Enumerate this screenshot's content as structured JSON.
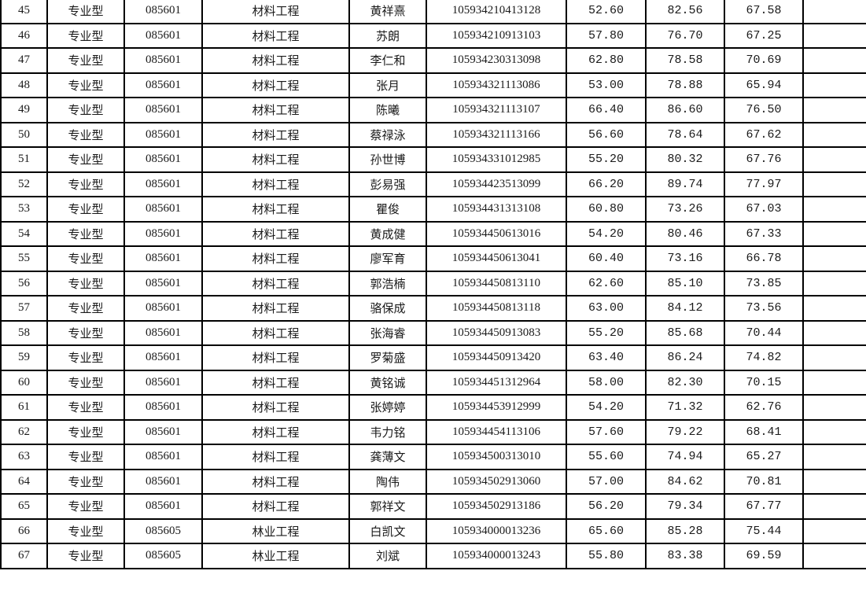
{
  "rows": [
    [
      "45",
      "专业型",
      "085601",
      "材料工程",
      "黄祥熹",
      "105934210413128",
      "52.60",
      "82.56",
      "67.58",
      ""
    ],
    [
      "46",
      "专业型",
      "085601",
      "材料工程",
      "苏朗",
      "105934210913103",
      "57.80",
      "76.70",
      "67.25",
      ""
    ],
    [
      "47",
      "专业型",
      "085601",
      "材料工程",
      "李仁和",
      "105934230313098",
      "62.80",
      "78.58",
      "70.69",
      ""
    ],
    [
      "48",
      "专业型",
      "085601",
      "材料工程",
      "张月",
      "105934321113086",
      "53.00",
      "78.88",
      "65.94",
      ""
    ],
    [
      "49",
      "专业型",
      "085601",
      "材料工程",
      "陈曦",
      "105934321113107",
      "66.40",
      "86.60",
      "76.50",
      ""
    ],
    [
      "50",
      "专业型",
      "085601",
      "材料工程",
      "蔡禄泳",
      "105934321113166",
      "56.60",
      "78.64",
      "67.62",
      ""
    ],
    [
      "51",
      "专业型",
      "085601",
      "材料工程",
      "孙世博",
      "105934331012985",
      "55.20",
      "80.32",
      "67.76",
      ""
    ],
    [
      "52",
      "专业型",
      "085601",
      "材料工程",
      "彭易强",
      "105934423513099",
      "66.20",
      "89.74",
      "77.97",
      ""
    ],
    [
      "53",
      "专业型",
      "085601",
      "材料工程",
      "瞿俊",
      "105934431313108",
      "60.80",
      "73.26",
      "67.03",
      ""
    ],
    [
      "54",
      "专业型",
      "085601",
      "材料工程",
      "黄成健",
      "105934450613016",
      "54.20",
      "80.46",
      "67.33",
      ""
    ],
    [
      "55",
      "专业型",
      "085601",
      "材料工程",
      "廖军育",
      "105934450613041",
      "60.40",
      "73.16",
      "66.78",
      ""
    ],
    [
      "56",
      "专业型",
      "085601",
      "材料工程",
      "郭浩楠",
      "105934450813110",
      "62.60",
      "85.10",
      "73.85",
      ""
    ],
    [
      "57",
      "专业型",
      "085601",
      "材料工程",
      "骆保成",
      "105934450813118",
      "63.00",
      "84.12",
      "73.56",
      ""
    ],
    [
      "58",
      "专业型",
      "085601",
      "材料工程",
      "张海睿",
      "105934450913083",
      "55.20",
      "85.68",
      "70.44",
      ""
    ],
    [
      "59",
      "专业型",
      "085601",
      "材料工程",
      "罗菊盛",
      "105934450913420",
      "63.40",
      "86.24",
      "74.82",
      ""
    ],
    [
      "60",
      "专业型",
      "085601",
      "材料工程",
      "黄铭诚",
      "105934451312964",
      "58.00",
      "82.30",
      "70.15",
      ""
    ],
    [
      "61",
      "专业型",
      "085601",
      "材料工程",
      "张婷婷",
      "105934453912999",
      "54.20",
      "71.32",
      "62.76",
      ""
    ],
    [
      "62",
      "专业型",
      "085601",
      "材料工程",
      "韦力铭",
      "105934454113106",
      "57.60",
      "79.22",
      "68.41",
      ""
    ],
    [
      "63",
      "专业型",
      "085601",
      "材料工程",
      "龚薄文",
      "105934500313010",
      "55.60",
      "74.94",
      "65.27",
      ""
    ],
    [
      "64",
      "专业型",
      "085601",
      "材料工程",
      "陶伟",
      "105934502913060",
      "57.00",
      "84.62",
      "70.81",
      ""
    ],
    [
      "65",
      "专业型",
      "085601",
      "材料工程",
      "郭祥文",
      "105934502913186",
      "56.20",
      "79.34",
      "67.77",
      ""
    ],
    [
      "66",
      "专业型",
      "085605",
      "林业工程",
      "白凯文",
      "105934000013236",
      "65.60",
      "85.28",
      "75.44",
      ""
    ],
    [
      "67",
      "专业型",
      "085605",
      "林业工程",
      "刘斌",
      "105934000013243",
      "55.80",
      "83.38",
      "69.59",
      ""
    ]
  ]
}
